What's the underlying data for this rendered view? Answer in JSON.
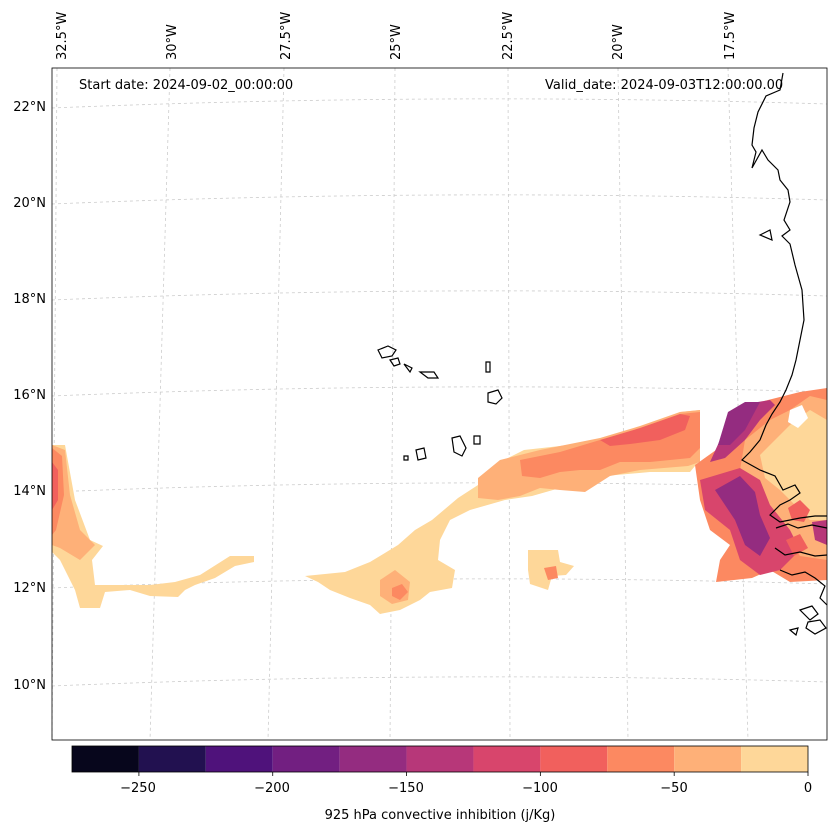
{
  "map": {
    "start_date_label": "Start date: 2024-09-02_00:00:00",
    "valid_date_label": "Valid_date: 2024-09-03T12:00:00.00",
    "lon_labels": [
      "32.5°W",
      "30°W",
      "27.5°W",
      "25°W",
      "22.5°W",
      "20°W",
      "17.5°W"
    ],
    "lat_labels": [
      "22°N",
      "20°N",
      "18°N",
      "16°N",
      "14°N",
      "12°N",
      "10°N"
    ],
    "colors": {
      "land_outline": "#000000",
      "gridline": "#cccccc"
    }
  },
  "colorbar": {
    "title": "925 hPa convective inhibition (j/Kg)",
    "tick_labels": [
      "−250",
      "−200",
      "−150",
      "−100",
      "−50",
      "0"
    ],
    "levels": [
      -275,
      -250,
      -225,
      -200,
      -175,
      -150,
      -125,
      -100,
      -75,
      -50,
      -25,
      0
    ],
    "colors": [
      "#07061c",
      "#221150",
      "#4f127b",
      "#721f81",
      "#942c80",
      "#b73779",
      "#d8456c",
      "#f1605d",
      "#fc8961",
      "#feb078",
      "#fed799"
    ]
  }
}
